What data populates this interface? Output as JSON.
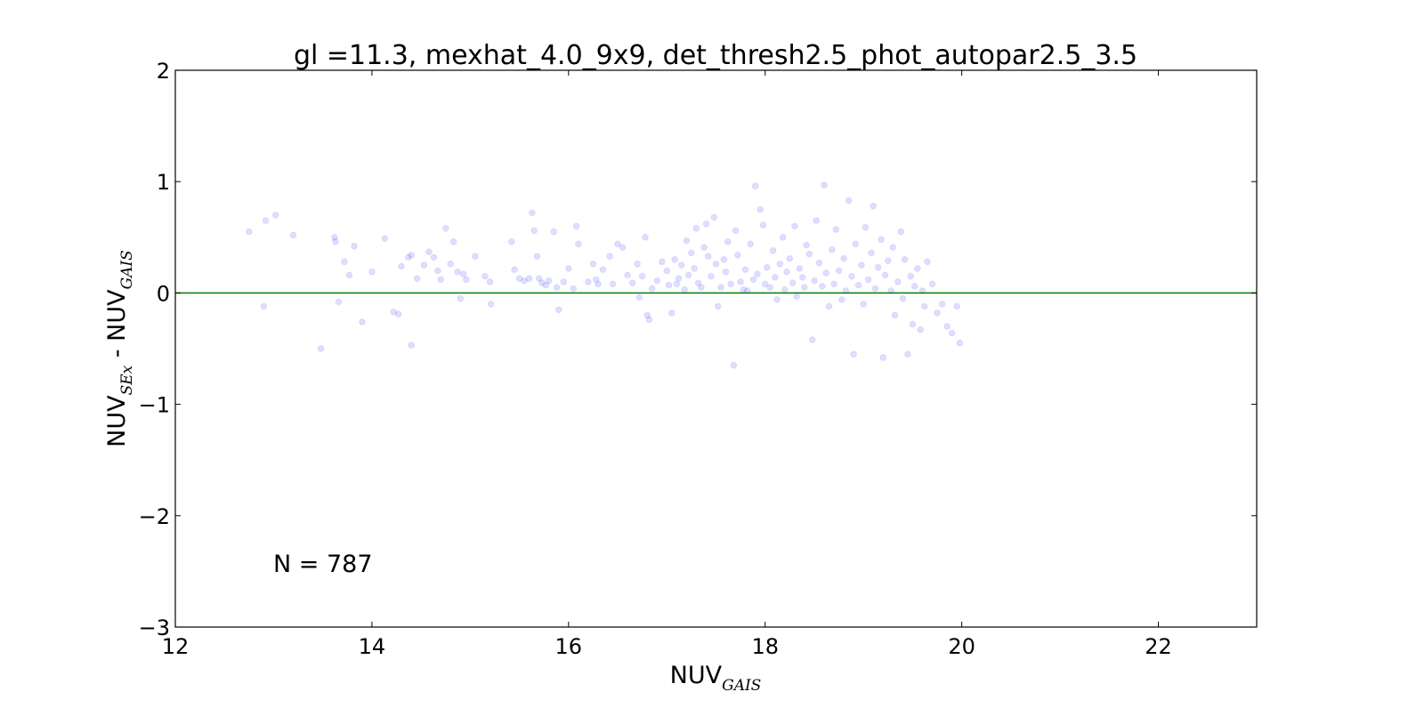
{
  "chart_data": {
    "type": "scatter",
    "title": "gl =11.3, mexhat_4.0_9x9, det_thresh2.5_phot_autopar2.5_3.5",
    "xlabel": {
      "main": "NUV",
      "sub": "GAIS"
    },
    "ylabel": {
      "main1": "NUV",
      "sub1": "SEx",
      "sep": " - ",
      "main2": "NUV",
      "sub2": "GAIS"
    },
    "xlim": [
      12,
      23
    ],
    "ylim": [
      -3,
      2
    ],
    "xticks": [
      12,
      14,
      16,
      18,
      20,
      22
    ],
    "yticks": [
      -3,
      -2,
      -1,
      0,
      1,
      2
    ],
    "xtick_labels": [
      "12",
      "14",
      "16",
      "18",
      "20",
      "22"
    ],
    "ytick_labels": [
      "−3",
      "−2",
      "−1",
      "0",
      "1",
      "2"
    ],
    "reference_line": {
      "y": 0,
      "color": "#008000"
    },
    "annotation": "N = 787",
    "point_color": "#0000ff",
    "point_alpha": 0.13,
    "grid": false,
    "series": [
      {
        "points": [
          [
            12.75,
            0.55
          ],
          [
            12.9,
            -0.12
          ],
          [
            12.92,
            0.65
          ],
          [
            13.02,
            0.7
          ],
          [
            13.2,
            0.52
          ],
          [
            13.48,
            -0.5
          ],
          [
            13.62,
            0.5
          ],
          [
            13.63,
            0.46
          ],
          [
            13.66,
            -0.08
          ],
          [
            13.72,
            0.28
          ],
          [
            13.77,
            0.16
          ],
          [
            13.82,
            0.42
          ],
          [
            13.9,
            -0.26
          ],
          [
            14.0,
            0.19
          ],
          [
            14.13,
            0.49
          ],
          [
            14.22,
            -0.17
          ],
          [
            14.27,
            -0.19
          ],
          [
            14.3,
            0.24
          ],
          [
            14.37,
            0.32
          ],
          [
            14.4,
            0.34
          ],
          [
            14.4,
            -0.47
          ],
          [
            14.46,
            0.13
          ],
          [
            14.53,
            0.25
          ],
          [
            14.58,
            0.37
          ],
          [
            14.63,
            0.32
          ],
          [
            14.67,
            0.2
          ],
          [
            14.7,
            0.12
          ],
          [
            14.75,
            0.58
          ],
          [
            14.8,
            0.26
          ],
          [
            14.83,
            0.46
          ],
          [
            14.87,
            0.19
          ],
          [
            14.9,
            -0.05
          ],
          [
            14.93,
            0.17
          ],
          [
            14.96,
            0.12
          ],
          [
            15.05,
            0.33
          ],
          [
            15.15,
            0.15
          ],
          [
            15.2,
            0.1
          ],
          [
            15.21,
            -0.1
          ],
          [
            15.42,
            0.46
          ],
          [
            15.45,
            0.21
          ],
          [
            15.5,
            0.13
          ],
          [
            15.55,
            0.11
          ],
          [
            15.6,
            0.13
          ],
          [
            15.63,
            0.72
          ],
          [
            15.65,
            0.56
          ],
          [
            15.68,
            0.33
          ],
          [
            15.7,
            0.13
          ],
          [
            15.73,
            0.09
          ],
          [
            15.77,
            0.07
          ],
          [
            15.8,
            0.11
          ],
          [
            15.85,
            0.55
          ],
          [
            15.88,
            0.05
          ],
          [
            15.9,
            -0.15
          ],
          [
            15.95,
            0.1
          ],
          [
            16.0,
            0.22
          ],
          [
            16.05,
            0.04
          ],
          [
            16.08,
            0.6
          ],
          [
            16.1,
            0.44
          ],
          [
            16.2,
            0.1
          ],
          [
            16.25,
            0.26
          ],
          [
            16.28,
            0.12
          ],
          [
            16.3,
            0.08
          ],
          [
            16.35,
            0.21
          ],
          [
            16.42,
            0.33
          ],
          [
            16.45,
            0.08
          ],
          [
            16.5,
            0.44
          ],
          [
            16.55,
            0.41
          ],
          [
            16.6,
            0.16
          ],
          [
            16.65,
            0.09
          ],
          [
            16.7,
            0.26
          ],
          [
            16.72,
            -0.04
          ],
          [
            16.75,
            0.15
          ],
          [
            16.78,
            0.5
          ],
          [
            16.8,
            -0.2
          ],
          [
            16.82,
            -0.24
          ],
          [
            16.85,
            0.04
          ],
          [
            16.9,
            0.11
          ],
          [
            16.95,
            0.28
          ],
          [
            17.0,
            0.2
          ],
          [
            17.02,
            0.07
          ],
          [
            17.05,
            -0.18
          ],
          [
            17.08,
            0.3
          ],
          [
            17.1,
            0.08
          ],
          [
            17.12,
            0.13
          ],
          [
            17.15,
            0.25
          ],
          [
            17.18,
            0.03
          ],
          [
            17.2,
            0.47
          ],
          [
            17.22,
            0.16
          ],
          [
            17.25,
            0.36
          ],
          [
            17.28,
            0.22
          ],
          [
            17.3,
            0.58
          ],
          [
            17.32,
            0.09
          ],
          [
            17.35,
            0.05
          ],
          [
            17.38,
            0.41
          ],
          [
            17.4,
            0.62
          ],
          [
            17.42,
            0.33
          ],
          [
            17.45,
            0.15
          ],
          [
            17.48,
            0.68
          ],
          [
            17.5,
            0.26
          ],
          [
            17.52,
            -0.12
          ],
          [
            17.55,
            0.05
          ],
          [
            17.58,
            0.3
          ],
          [
            17.6,
            0.19
          ],
          [
            17.62,
            0.46
          ],
          [
            17.65,
            0.08
          ],
          [
            17.68,
            -0.65
          ],
          [
            17.7,
            0.56
          ],
          [
            17.72,
            0.34
          ],
          [
            17.75,
            0.1
          ],
          [
            17.78,
            0.03
          ],
          [
            17.8,
            0.21
          ],
          [
            17.82,
            0.02
          ],
          [
            17.85,
            0.44
          ],
          [
            17.88,
            0.12
          ],
          [
            17.9,
            0.96
          ],
          [
            17.92,
            0.17
          ],
          [
            17.95,
            0.75
          ],
          [
            17.98,
            0.61
          ],
          [
            18.0,
            0.08
          ],
          [
            18.02,
            0.23
          ],
          [
            18.05,
            0.05
          ],
          [
            18.08,
            0.38
          ],
          [
            18.1,
            0.14
          ],
          [
            18.12,
            -0.06
          ],
          [
            18.15,
            0.26
          ],
          [
            18.18,
            0.5
          ],
          [
            18.2,
            0.03
          ],
          [
            18.22,
            0.19
          ],
          [
            18.25,
            0.31
          ],
          [
            18.28,
            0.09
          ],
          [
            18.3,
            0.6
          ],
          [
            18.32,
            -0.03
          ],
          [
            18.35,
            0.22
          ],
          [
            18.38,
            0.14
          ],
          [
            18.4,
            0.05
          ],
          [
            18.42,
            0.43
          ],
          [
            18.45,
            0.35
          ],
          [
            18.48,
            -0.42
          ],
          [
            18.5,
            0.11
          ],
          [
            18.52,
            0.65
          ],
          [
            18.55,
            0.27
          ],
          [
            18.58,
            0.06
          ],
          [
            18.6,
            0.97
          ],
          [
            18.62,
            0.18
          ],
          [
            18.65,
            -0.12
          ],
          [
            18.68,
            0.39
          ],
          [
            18.7,
            0.08
          ],
          [
            18.72,
            0.57
          ],
          [
            18.75,
            0.2
          ],
          [
            18.78,
            -0.06
          ],
          [
            18.8,
            0.31
          ],
          [
            18.82,
            0.02
          ],
          [
            18.85,
            0.83
          ],
          [
            18.88,
            0.15
          ],
          [
            18.9,
            -0.55
          ],
          [
            18.92,
            0.44
          ],
          [
            18.95,
            0.07
          ],
          [
            18.98,
            0.25
          ],
          [
            19.0,
            -0.1
          ],
          [
            19.02,
            0.59
          ],
          [
            19.05,
            0.12
          ],
          [
            19.08,
            0.36
          ],
          [
            19.1,
            0.78
          ],
          [
            19.12,
            0.04
          ],
          [
            19.15,
            0.23
          ],
          [
            19.18,
            0.48
          ],
          [
            19.2,
            -0.58
          ],
          [
            19.22,
            0.16
          ],
          [
            19.25,
            0.29
          ],
          [
            19.28,
            0.02
          ],
          [
            19.3,
            0.41
          ],
          [
            19.32,
            -0.2
          ],
          [
            19.35,
            0.1
          ],
          [
            19.38,
            0.55
          ],
          [
            19.4,
            -0.05
          ],
          [
            19.42,
            0.3
          ],
          [
            19.45,
            -0.55
          ],
          [
            19.48,
            0.15
          ],
          [
            19.5,
            -0.28
          ],
          [
            19.52,
            0.06
          ],
          [
            19.55,
            0.22
          ],
          [
            19.58,
            -0.33
          ],
          [
            19.6,
            0.02
          ],
          [
            19.62,
            -0.12
          ],
          [
            19.65,
            0.28
          ],
          [
            19.7,
            0.08
          ],
          [
            19.75,
            -0.18
          ],
          [
            19.8,
            -0.1
          ],
          [
            19.85,
            -0.3
          ],
          [
            19.9,
            -0.36
          ],
          [
            19.98,
            -0.45
          ],
          [
            19.95,
            -0.12
          ]
        ]
      }
    ]
  }
}
